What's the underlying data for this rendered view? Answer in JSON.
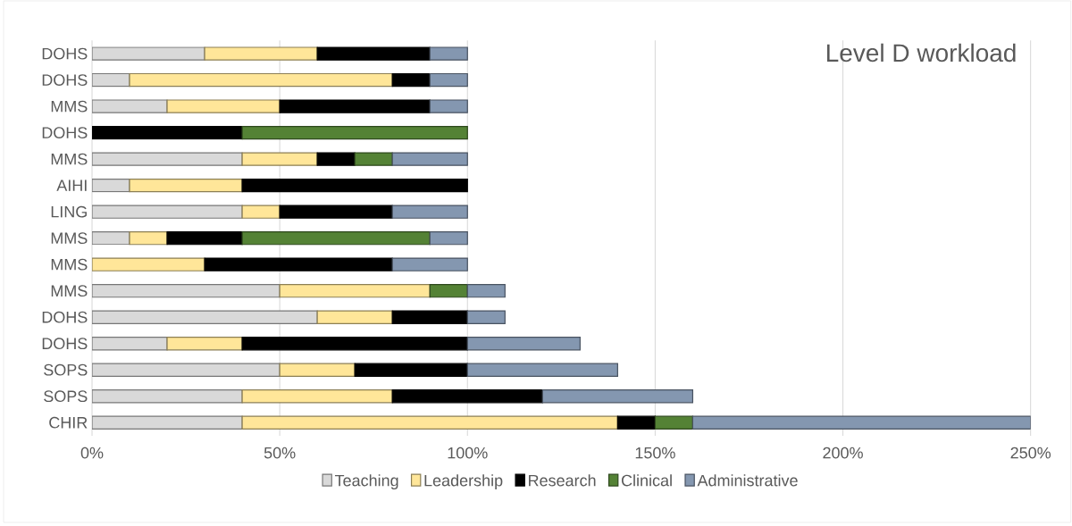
{
  "chart_data": {
    "type": "bar",
    "orientation": "horizontal",
    "stacked": true,
    "title": "Level D workload",
    "categories": [
      "DOHS",
      "DOHS",
      "MMS",
      "DOHS",
      "MMS",
      "AIHI",
      "LING",
      "MMS",
      "MMS",
      "MMS",
      "DOHS",
      "DOHS",
      "SOPS",
      "SOPS",
      "CHIR"
    ],
    "series": [
      {
        "name": "Teaching",
        "color": "#d9d9d9",
        "values": [
          30,
          10,
          20,
          null,
          40,
          10,
          40,
          10,
          null,
          50,
          60,
          20,
          50,
          40,
          40
        ]
      },
      {
        "name": "Leadership",
        "color": "#ffe699",
        "values": [
          30,
          70,
          30,
          null,
          20,
          30,
          10,
          10,
          30,
          40,
          20,
          20,
          20,
          40,
          100
        ]
      },
      {
        "name": "Research",
        "color": "#000000",
        "values": [
          30,
          10,
          40,
          40,
          10,
          60,
          30,
          20,
          50,
          null,
          20,
          60,
          30,
          40,
          10
        ]
      },
      {
        "name": "Clinical",
        "color": "#548235",
        "values": [
          null,
          null,
          null,
          60,
          10,
          null,
          null,
          50,
          null,
          10,
          null,
          null,
          null,
          null,
          10
        ]
      },
      {
        "name": "Administrative",
        "color": "#8497b0",
        "values": [
          10,
          10,
          10,
          null,
          20,
          null,
          20,
          10,
          20,
          10,
          10,
          30,
          40,
          40,
          90
        ]
      }
    ],
    "xlim": [
      0,
      250
    ],
    "xticks": [
      {
        "value": 0,
        "label": "0%"
      },
      {
        "value": 50,
        "label": "50%"
      },
      {
        "value": 100,
        "label": "100%"
      },
      {
        "value": 150,
        "label": "150%"
      },
      {
        "value": 200,
        "label": "200%"
      },
      {
        "value": 250,
        "label": "250%"
      }
    ],
    "grid": "x",
    "legend": "bottom"
  }
}
